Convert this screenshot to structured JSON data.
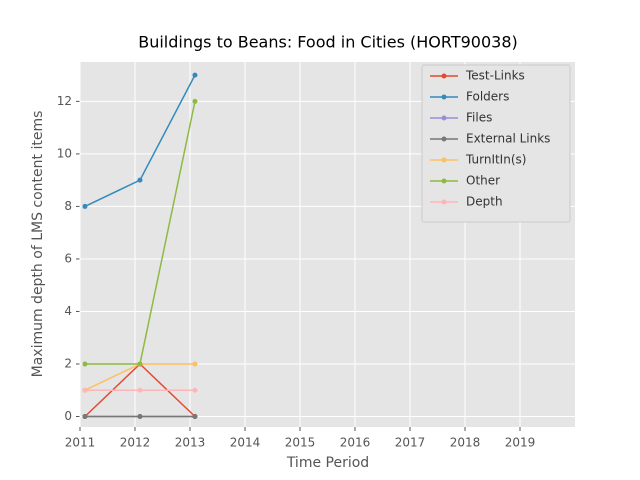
{
  "chart_data": {
    "type": "line",
    "title": "Buildings to Beans: Food in Cities (HORT90038)",
    "x_label": "Time Period",
    "y_label": "Maximum depth of LMS content items",
    "x": [
      2011.09,
      2012.09,
      2013.09
    ],
    "series": [
      {
        "name": "Test-Links",
        "color": "#E24A33",
        "values": [
          0,
          2,
          0
        ]
      },
      {
        "name": "Folders",
        "color": "#348ABD",
        "values": [
          8,
          9,
          13
        ]
      },
      {
        "name": "Files",
        "color": "#988ED5",
        "values": [
          0,
          0,
          0
        ]
      },
      {
        "name": "External Links",
        "color": "#777777",
        "values": [
          0,
          0,
          0
        ]
      },
      {
        "name": "TurnItIn(s)",
        "color": "#FBC15E",
        "values": [
          1,
          2,
          2
        ]
      },
      {
        "name": "Other",
        "color": "#8EBA42",
        "values": [
          2,
          2,
          12
        ]
      },
      {
        "name": "Depth",
        "color": "#FFB5B8",
        "values": [
          1,
          1,
          1
        ]
      }
    ],
    "xlim": [
      2011,
      2020
    ],
    "xticks": [
      2011,
      2012,
      2013,
      2014,
      2015,
      2016,
      2017,
      2018,
      2019
    ],
    "ylim": [
      -0.4,
      13.5
    ],
    "yticks": [
      0,
      2,
      4,
      6,
      8,
      10,
      12
    ],
    "grid": true,
    "legend": "upper right"
  }
}
